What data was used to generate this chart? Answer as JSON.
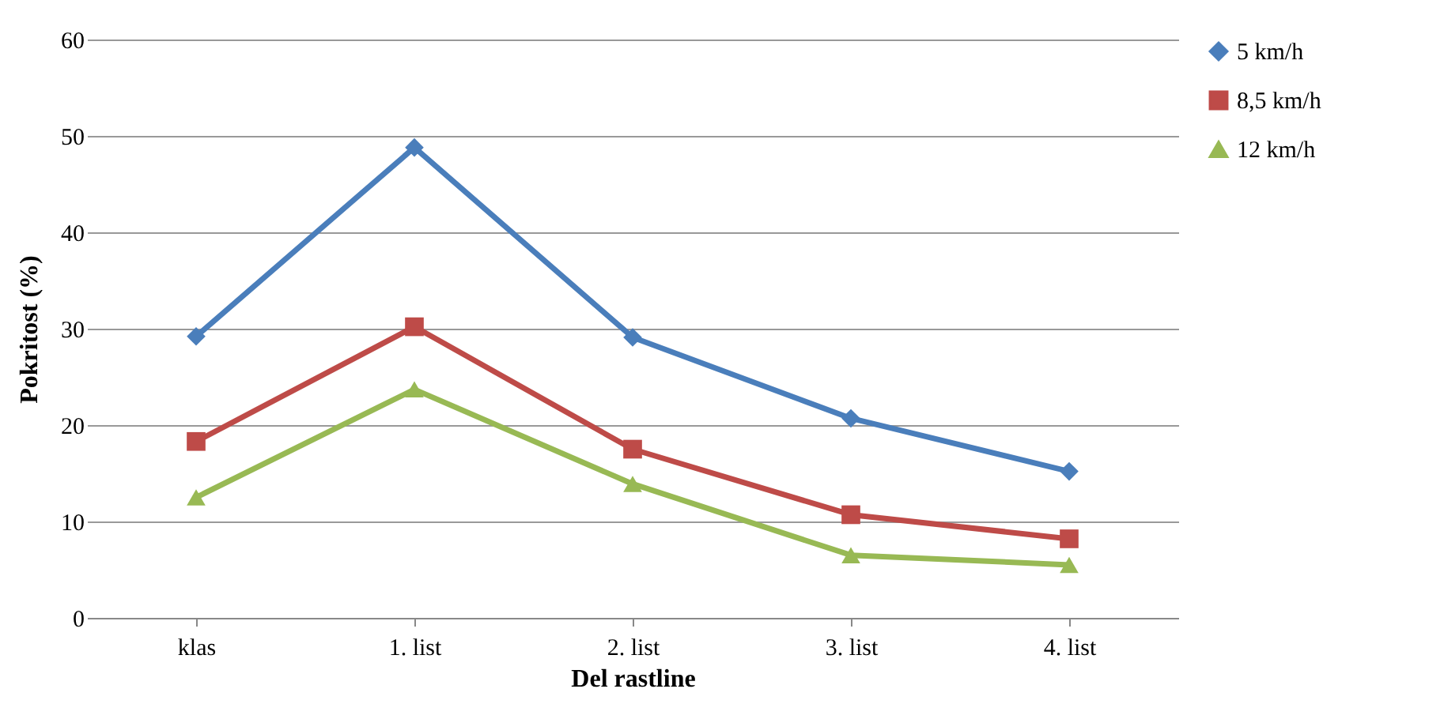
{
  "chart_data": {
    "type": "line",
    "xlabel": "Del rastline",
    "ylabel": "Pokritost (%)",
    "categories": [
      "klas",
      "1. list",
      "2. list",
      "3. list",
      "4. list"
    ],
    "series": [
      {
        "name": "5 km/h",
        "color": "#4a7ebb",
        "marker": "diamond",
        "values": [
          29.2,
          48.8,
          29.1,
          20.7,
          15.2
        ]
      },
      {
        "name": "8,5 km/h",
        "color": "#be4b48",
        "marker": "square",
        "values": [
          18.3,
          30.2,
          17.5,
          10.7,
          8.2
        ]
      },
      {
        "name": "12 km/h",
        "color": "#98b954",
        "marker": "triangle",
        "values": [
          12.5,
          23.7,
          13.9,
          6.5,
          5.5
        ]
      }
    ],
    "ylim": [
      0,
      60
    ],
    "yticks": [
      0,
      10,
      20,
      30,
      40,
      50,
      60
    ],
    "grid": "y",
    "legend": "right",
    "line_style": "solid"
  }
}
